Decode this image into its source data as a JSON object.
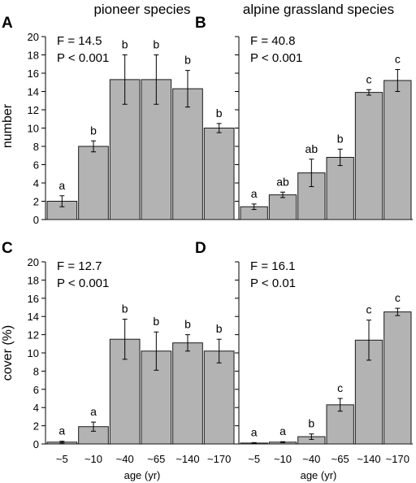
{
  "column_titles": [
    "pioneer species",
    "alpine grassland species"
  ],
  "shared": {
    "ylabel_top": "number",
    "ylabel_bottom": "cover (%)",
    "xlabel": "age (yr)"
  },
  "colors": {
    "bar": "#b3b3b3",
    "bar_edge": "#1a1a1a",
    "axis": "#000000"
  },
  "chart_data": [
    {
      "panel": "A",
      "type": "bar",
      "categories": [
        "~5",
        "~10",
        "~40",
        "~65",
        "~140",
        "~170"
      ],
      "values": [
        2.0,
        8.0,
        15.3,
        15.3,
        14.3,
        10.0
      ],
      "errors": [
        0.6,
        0.6,
        2.7,
        2.7,
        2.0,
        0.5
      ],
      "letters": [
        "a",
        "b",
        "b",
        "b",
        "b",
        "b"
      ],
      "stats": [
        "F = 14.5",
        "P < 0.001"
      ],
      "ylabel": "number",
      "ylim": [
        0,
        20
      ],
      "yticks": [
        0,
        2,
        4,
        6,
        8,
        10,
        12,
        14,
        16,
        18,
        20
      ]
    },
    {
      "panel": "B",
      "type": "bar",
      "categories": [
        "~5",
        "~10",
        "~40",
        "~65",
        "~140",
        "~170"
      ],
      "values": [
        1.4,
        2.7,
        5.1,
        6.8,
        13.9,
        15.2
      ],
      "errors": [
        0.3,
        0.3,
        1.5,
        0.9,
        0.3,
        1.2
      ],
      "letters": [
        "a",
        "ab",
        "ab",
        "b",
        "c",
        "c"
      ],
      "stats": [
        "F = 40.8",
        "P < 0.001"
      ],
      "ylabel": "",
      "ylim": [
        0,
        20
      ],
      "yticks": [
        0,
        2,
        4,
        6,
        8,
        10,
        12,
        14,
        16,
        18,
        20
      ]
    },
    {
      "panel": "C",
      "type": "bar",
      "categories": [
        "~5",
        "~10",
        "~40",
        "~65",
        "~140",
        "~170"
      ],
      "values": [
        0.2,
        1.9,
        11.5,
        10.2,
        11.1,
        10.2
      ],
      "errors": [
        0.1,
        0.5,
        2.2,
        2.1,
        0.9,
        1.3
      ],
      "letters": [
        "a",
        "a",
        "b",
        "b",
        "b",
        "b"
      ],
      "stats": [
        "F = 12.7",
        "P < 0.001"
      ],
      "ylabel": "cover (%)",
      "ylim": [
        0,
        20
      ],
      "yticks": [
        0,
        2,
        4,
        6,
        8,
        10,
        12,
        14,
        16,
        18,
        20
      ]
    },
    {
      "panel": "D",
      "type": "bar",
      "categories": [
        "~5",
        "~10",
        "~40",
        "~65",
        "~140",
        "~170"
      ],
      "values": [
        0.1,
        0.2,
        0.8,
        4.3,
        11.4,
        14.5
      ],
      "errors": [
        0.05,
        0.05,
        0.3,
        0.7,
        2.2,
        0.4
      ],
      "letters": [
        "a",
        "a",
        "b",
        "c",
        "c",
        "c"
      ],
      "stats": [
        "F = 16.1",
        "P < 0.01"
      ],
      "ylabel": "",
      "ylim": [
        0,
        20
      ],
      "yticks": [
        0,
        2,
        4,
        6,
        8,
        10,
        12,
        14,
        16,
        18,
        20
      ]
    }
  ]
}
